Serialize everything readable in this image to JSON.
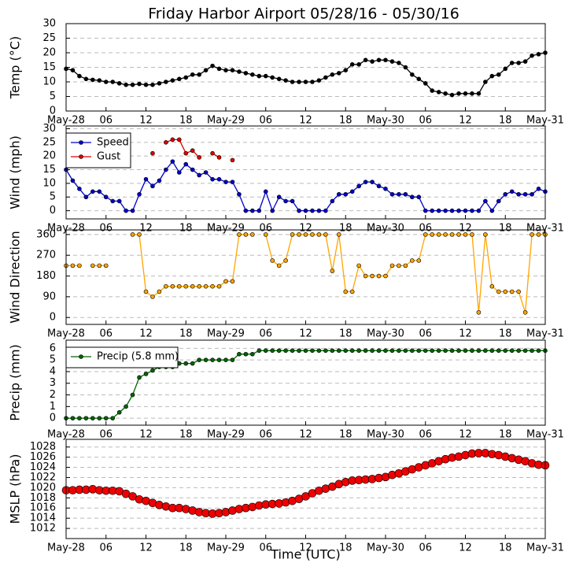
{
  "chart_data": [
    {
      "type": "line",
      "title": "Friday Harbor Airport 05/28/16 - 05/30/16",
      "y_label": "Temp (°C)",
      "xlim": [
        0,
        72
      ],
      "ylim": [
        0,
        30
      ],
      "yticks": [
        0,
        5,
        10,
        15,
        20,
        25,
        30
      ],
      "grid": true,
      "xticks": [
        {
          "value": 0,
          "label": "May-28"
        },
        {
          "value": 6,
          "label": "06"
        },
        {
          "value": 12,
          "label": "12"
        },
        {
          "value": 18,
          "label": "18"
        },
        {
          "value": 24,
          "label": "May-29"
        },
        {
          "value": 30,
          "label": "06"
        },
        {
          "value": 36,
          "label": "12"
        },
        {
          "value": 42,
          "label": "18"
        },
        {
          "value": 48,
          "label": "May-30"
        },
        {
          "value": 54,
          "label": "06"
        },
        {
          "value": 60,
          "label": "12"
        },
        {
          "value": 66,
          "label": "18"
        },
        {
          "value": 72,
          "label": "May-31"
        }
      ],
      "x": [
        0,
        1,
        2,
        3,
        4,
        5,
        6,
        7,
        8,
        9,
        10,
        11,
        12,
        13,
        14,
        15,
        16,
        17,
        18,
        19,
        20,
        21,
        22,
        23,
        24,
        25,
        26,
        27,
        28,
        29,
        30,
        31,
        32,
        33,
        34,
        35,
        36,
        37,
        38,
        39,
        40,
        41,
        42,
        43,
        44,
        45,
        46,
        47,
        48,
        49,
        50,
        51,
        52,
        53,
        54,
        55,
        56,
        57,
        58,
        59,
        60,
        61,
        62,
        63,
        64,
        65,
        66,
        67,
        68,
        69,
        70,
        71,
        72
      ],
      "series": [
        {
          "color": "#000000",
          "marker_size": 2.5,
          "values": [
            14.5,
            14,
            12,
            11,
            10.7,
            10.5,
            10,
            10,
            9.5,
            9,
            9,
            9.3,
            9,
            9,
            9.5,
            10,
            10.5,
            11,
            11.5,
            12.5,
            12.5,
            14,
            15.5,
            14.5,
            14,
            14,
            13.5,
            13,
            12.5,
            12,
            12,
            11.5,
            11,
            10.5,
            10,
            10,
            10,
            10,
            10.5,
            11.5,
            12.5,
            13,
            14,
            16,
            16,
            17.5,
            17,
            17.5,
            17.5,
            17,
            16.5,
            15,
            12.5,
            11,
            9.5,
            7,
            6.5,
            6,
            5.5,
            6,
            6,
            6,
            6,
            10,
            12,
            12.5,
            14.5,
            16.5,
            16.5,
            17,
            19,
            19.5,
            20
          ]
        }
      ]
    },
    {
      "type": "line",
      "y_label": "Wind (mph)",
      "xlim": [
        0,
        72
      ],
      "ylim": [
        -3,
        31
      ],
      "yticks": [
        0,
        5,
        10,
        15,
        20,
        25,
        30
      ],
      "grid": true,
      "legend": "upper left",
      "xticks": [
        {
          "value": 0,
          "label": "May-28"
        },
        {
          "value": 6,
          "label": "06"
        },
        {
          "value": 12,
          "label": "12"
        },
        {
          "value": 18,
          "label": "18"
        },
        {
          "value": 24,
          "label": "May-29"
        },
        {
          "value": 30,
          "label": "06"
        },
        {
          "value": 36,
          "label": "12"
        },
        {
          "value": 42,
          "label": "18"
        },
        {
          "value": 48,
          "label": "May-30"
        },
        {
          "value": 54,
          "label": "06"
        },
        {
          "value": 60,
          "label": "12"
        },
        {
          "value": 66,
          "label": "18"
        },
        {
          "value": 72,
          "label": "May-31"
        }
      ],
      "x": [
        0,
        1,
        2,
        3,
        4,
        5,
        6,
        7,
        8,
        9,
        10,
        11,
        12,
        13,
        14,
        15,
        16,
        17,
        18,
        19,
        20,
        21,
        22,
        23,
        24,
        25,
        26,
        27,
        28,
        29,
        30,
        31,
        32,
        33,
        34,
        35,
        36,
        37,
        38,
        39,
        40,
        41,
        42,
        43,
        44,
        45,
        46,
        47,
        48,
        49,
        50,
        51,
        52,
        53,
        54,
        55,
        56,
        57,
        58,
        59,
        60,
        61,
        62,
        63,
        64,
        65,
        66,
        67,
        68,
        69,
        70,
        71,
        72
      ],
      "series": [
        {
          "name": "Speed",
          "color": "#0000cc",
          "marker_size": 2.5,
          "values": [
            15,
            11,
            8,
            5,
            7,
            7,
            5,
            3.5,
            3.5,
            0,
            0,
            6,
            11.5,
            9,
            11,
            15,
            18,
            14,
            17,
            15,
            13,
            14,
            11.5,
            11.5,
            10.5,
            10.5,
            6,
            0,
            0,
            0,
            7,
            0,
            5,
            3.5,
            3.5,
            0,
            0,
            0,
            0,
            0,
            3.5,
            6,
            6,
            7,
            9,
            10.5,
            10.5,
            9,
            8,
            6,
            6,
            6,
            5,
            5,
            0,
            0,
            0,
            0,
            0,
            0,
            0,
            0,
            0,
            3.5,
            0,
            3.5,
            6,
            7,
            6,
            6,
            6,
            8,
            7
          ]
        },
        {
          "name": "Gust",
          "color": "#dd0000",
          "marker_size": 2.5,
          "values": [
            null,
            null,
            null,
            null,
            null,
            null,
            null,
            null,
            null,
            null,
            null,
            null,
            null,
            21,
            null,
            25,
            26,
            26,
            21,
            22,
            19.5,
            null,
            21,
            19.5,
            null,
            18.5,
            null,
            null,
            null,
            null,
            null,
            null,
            null,
            null,
            null,
            null,
            null,
            null,
            null,
            null,
            null,
            null,
            null,
            null,
            null,
            null,
            null,
            null,
            null,
            null,
            null,
            null,
            null,
            null,
            null,
            null,
            null,
            null,
            null,
            null,
            null,
            null,
            null,
            null,
            null,
            null,
            null,
            null,
            null,
            null,
            null,
            null,
            null
          ]
        }
      ]
    },
    {
      "type": "line",
      "y_label": "Wind Direction",
      "xlim": [
        0,
        72
      ],
      "ylim": [
        -30,
        380
      ],
      "yticks": [
        0,
        90,
        180,
        270,
        360
      ],
      "grid": true,
      "xticks": [
        {
          "value": 0,
          "label": "May-28"
        },
        {
          "value": 6,
          "label": "06"
        },
        {
          "value": 12,
          "label": "12"
        },
        {
          "value": 18,
          "label": "18"
        },
        {
          "value": 24,
          "label": "May-29"
        },
        {
          "value": 30,
          "label": "06"
        },
        {
          "value": 36,
          "label": "12"
        },
        {
          "value": 42,
          "label": "18"
        },
        {
          "value": 48,
          "label": "May-30"
        },
        {
          "value": 54,
          "label": "06"
        },
        {
          "value": 60,
          "label": "12"
        },
        {
          "value": 66,
          "label": "18"
        },
        {
          "value": 72,
          "label": "May-31"
        }
      ],
      "x": [
        0,
        1,
        2,
        3,
        4,
        5,
        6,
        7,
        8,
        9,
        10,
        11,
        12,
        13,
        14,
        15,
        16,
        17,
        18,
        19,
        20,
        21,
        22,
        23,
        24,
        25,
        26,
        27,
        28,
        29,
        30,
        31,
        32,
        33,
        34,
        35,
        36,
        37,
        38,
        39,
        40,
        41,
        42,
        43,
        44,
        45,
        46,
        47,
        48,
        49,
        50,
        51,
        52,
        53,
        54,
        55,
        56,
        57,
        58,
        59,
        60,
        61,
        62,
        63,
        64,
        65,
        66,
        67,
        68,
        69,
        70,
        71,
        72
      ],
      "series": [
        {
          "color": "#ffa500",
          "marker_size": 2.5,
          "values": [
            225,
            225,
            225,
            null,
            225,
            225,
            225,
            null,
            null,
            null,
            360,
            360,
            112,
            90,
            112,
            135,
            135,
            135,
            135,
            135,
            135,
            135,
            135,
            135,
            157,
            157,
            360,
            360,
            360,
            null,
            360,
            247,
            225,
            247,
            360,
            360,
            360,
            360,
            360,
            360,
            202,
            360,
            112,
            112,
            225,
            180,
            180,
            180,
            180,
            225,
            225,
            225,
            247,
            247,
            360,
            360,
            360,
            360,
            360,
            360,
            360,
            360,
            22,
            360,
            135,
            112,
            112,
            112,
            112,
            22,
            360,
            360,
            360
          ]
        }
      ]
    },
    {
      "type": "line",
      "y_label": "Precip (mm)",
      "xlim": [
        0,
        72
      ],
      "ylim": [
        -0.6,
        6.7
      ],
      "yticks": [
        0,
        1,
        2,
        3,
        4,
        5,
        6
      ],
      "grid": true,
      "legend": "upper left",
      "xticks": [
        {
          "value": 0,
          "label": "May-28"
        },
        {
          "value": 6,
          "label": "06"
        },
        {
          "value": 12,
          "label": "12"
        },
        {
          "value": 18,
          "label": "18"
        },
        {
          "value": 24,
          "label": "May-29"
        },
        {
          "value": 30,
          "label": "06"
        },
        {
          "value": 36,
          "label": "12"
        },
        {
          "value": 42,
          "label": "18"
        },
        {
          "value": 48,
          "label": "May-30"
        },
        {
          "value": 54,
          "label": "06"
        },
        {
          "value": 60,
          "label": "12"
        },
        {
          "value": 66,
          "label": "18"
        },
        {
          "value": 72,
          "label": "May-31"
        }
      ],
      "x": [
        0,
        1,
        2,
        3,
        4,
        5,
        6,
        7,
        8,
        9,
        10,
        11,
        12,
        13,
        14,
        15,
        16,
        17,
        18,
        19,
        20,
        21,
        22,
        23,
        24,
        25,
        26,
        27,
        28,
        29,
        30,
        31,
        32,
        33,
        34,
        35,
        36,
        37,
        38,
        39,
        40,
        41,
        42,
        43,
        44,
        45,
        46,
        47,
        48,
        49,
        50,
        51,
        52,
        53,
        54,
        55,
        56,
        57,
        58,
        59,
        60,
        61,
        62,
        63,
        64,
        65,
        66,
        67,
        68,
        69,
        70,
        71,
        72
      ],
      "series": [
        {
          "name": "Precip (5.8 mm)",
          "color": "#006400",
          "marker_size": 2.5,
          "values": [
            0,
            0,
            0,
            0,
            0,
            0,
            0,
            0,
            0.5,
            1,
            2,
            3.5,
            3.8,
            4.1,
            4.4,
            4.4,
            4.4,
            4.7,
            4.7,
            4.7,
            5,
            5,
            5,
            5,
            5,
            5,
            5.5,
            5.5,
            5.5,
            5.8,
            5.8,
            5.8,
            5.8,
            5.8,
            5.8,
            5.8,
            5.8,
            5.8,
            5.8,
            5.8,
            5.8,
            5.8,
            5.8,
            5.8,
            5.8,
            5.8,
            5.8,
            5.8,
            5.8,
            5.8,
            5.8,
            5.8,
            5.8,
            5.8,
            5.8,
            5.8,
            5.8,
            5.8,
            5.8,
            5.8,
            5.8,
            5.8,
            5.8,
            5.8,
            5.8,
            5.8,
            5.8,
            5.8,
            5.8,
            5.8,
            5.8,
            5.8,
            5.8
          ]
        }
      ]
    },
    {
      "type": "line",
      "y_label": "MSLP (hPa)",
      "x_label": "Time (UTC)",
      "xlim": [
        0,
        72
      ],
      "ylim": [
        1010,
        1029.5
      ],
      "yticks": [
        1012,
        1014,
        1016,
        1018,
        1020,
        1022,
        1024,
        1026,
        1028
      ],
      "grid": true,
      "xticks": [
        {
          "value": 0,
          "label": "May-28"
        },
        {
          "value": 6,
          "label": "06"
        },
        {
          "value": 12,
          "label": "12"
        },
        {
          "value": 18,
          "label": "18"
        },
        {
          "value": 24,
          "label": "May-29"
        },
        {
          "value": 30,
          "label": "06"
        },
        {
          "value": 36,
          "label": "12"
        },
        {
          "value": 42,
          "label": "18"
        },
        {
          "value": 48,
          "label": "May-30"
        },
        {
          "value": 54,
          "label": "06"
        },
        {
          "value": 60,
          "label": "12"
        },
        {
          "value": 66,
          "label": "18"
        },
        {
          "value": 72,
          "label": "May-31"
        }
      ],
      "x": [
        0,
        1,
        2,
        3,
        4,
        5,
        6,
        7,
        8,
        9,
        10,
        11,
        12,
        13,
        14,
        15,
        16,
        17,
        18,
        19,
        20,
        21,
        22,
        23,
        24,
        25,
        26,
        27,
        28,
        29,
        30,
        31,
        32,
        33,
        34,
        35,
        36,
        37,
        38,
        39,
        40,
        41,
        42,
        43,
        44,
        45,
        46,
        47,
        48,
        49,
        50,
        51,
        52,
        53,
        54,
        55,
        56,
        57,
        58,
        59,
        60,
        61,
        62,
        63,
        64,
        65,
        66,
        67,
        68,
        69,
        70,
        71,
        72
      ],
      "series": [
        {
          "color": "#ee0000",
          "marker_size": 5,
          "values": [
            1019.5,
            1019.5,
            1019.6,
            1019.6,
            1019.7,
            1019.5,
            1019.4,
            1019.4,
            1019.3,
            1018.8,
            1018.3,
            1017.7,
            1017.4,
            1017,
            1016.6,
            1016.3,
            1016,
            1016,
            1015.8,
            1015.5,
            1015.2,
            1015,
            1014.9,
            1015,
            1015.2,
            1015.5,
            1015.8,
            1016,
            1016.2,
            1016.5,
            1016.7,
            1016.8,
            1016.9,
            1017.1,
            1017.4,
            1017.8,
            1018.3,
            1018.9,
            1019.4,
            1019.8,
            1020.2,
            1020.7,
            1021.1,
            1021.4,
            1021.5,
            1021.6,
            1021.7,
            1021.9,
            1022.1,
            1022.5,
            1022.8,
            1023.2,
            1023.6,
            1024,
            1024.4,
            1024.8,
            1025.2,
            1025.6,
            1025.9,
            1026.1,
            1026.4,
            1026.7,
            1026.8,
            1026.8,
            1026.6,
            1026.4,
            1026.1,
            1025.8,
            1025.5,
            1025.2,
            1024.8,
            1024.5,
            1024.4
          ]
        }
      ]
    }
  ]
}
